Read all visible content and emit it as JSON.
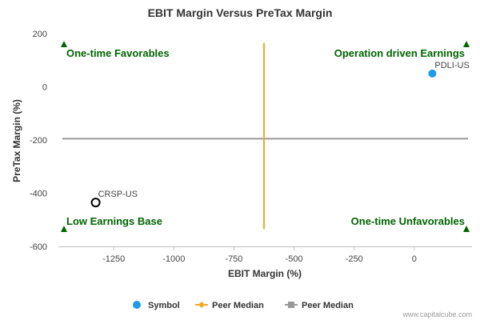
{
  "chart_data": {
    "type": "scatter",
    "title": "EBIT Margin Versus PreTax Margin",
    "xlabel": "EBIT Margin (%)",
    "ylabel": "PreTax Margin (%)",
    "xlim": [
      -1480,
      240
    ],
    "ylim": [
      -600,
      200
    ],
    "x_ticks": [
      -1250,
      -1000,
      -750,
      -500,
      -250,
      0
    ],
    "x_tick_labels": [
      "-1250",
      "-1000",
      "-750",
      "-500",
      "-250",
      "0"
    ],
    "y_ticks": [
      200,
      0,
      -200,
      -400,
      -600
    ],
    "y_tick_labels": [
      "200",
      "0",
      "-200",
      "-400",
      "-600"
    ],
    "grid": false,
    "points": [
      {
        "label": "PDLI-US",
        "x": 75,
        "y": 50,
        "color": "#1e9be8",
        "filled": true
      },
      {
        "label": "CRSP-US",
        "x": -1325,
        "y": -435,
        "color": "#000000",
        "filled": false
      }
    ],
    "peer_median_x": {
      "value": -625,
      "ymin": -535,
      "ymax": 165,
      "color": "#f5a623"
    },
    "peer_median_y": {
      "value": -195,
      "color": "#999999"
    },
    "quadrant_labels": [
      {
        "text": "One-time Favorables",
        "corner": "top-left"
      },
      {
        "text": "Operation driven Earnings",
        "corner": "top-right"
      },
      {
        "text": "Low Earnings Base",
        "corner": "bottom-left"
      },
      {
        "text": "One-time Unfavorables",
        "corner": "bottom-right"
      }
    ],
    "corner_marker_color": "#006400",
    "legend": {
      "placement": "bottom",
      "items": [
        {
          "label": "Symbol",
          "kind": "dot",
          "color": "#1e9be8"
        },
        {
          "label": "Peer Median",
          "kind": "diamond-line",
          "color": "#f5a623"
        },
        {
          "label": "Peer Median",
          "kind": "square-line",
          "color": "#999999"
        }
      ]
    }
  },
  "credit": "www.capitalcube.com"
}
